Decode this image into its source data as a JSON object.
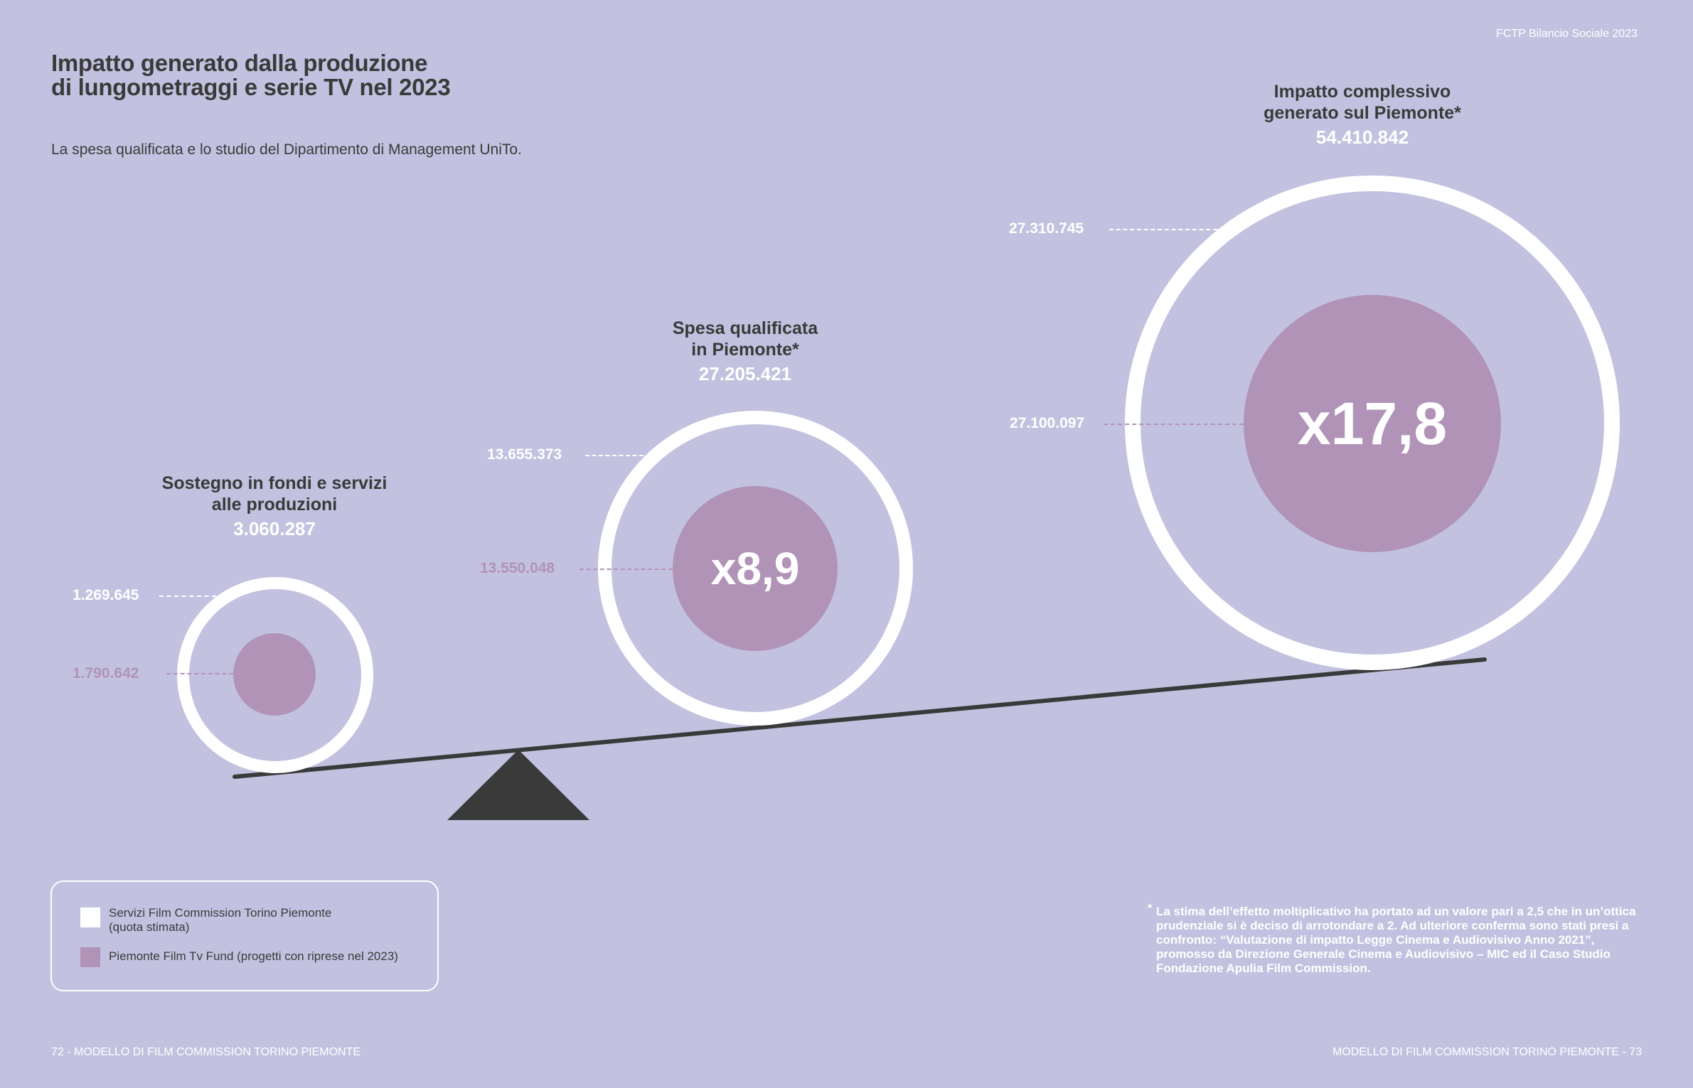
{
  "header": {
    "right": "FCTP Bilancio Sociale 2023"
  },
  "title": {
    "line1": "Impatto generato dalla produzione",
    "line2": "di lungometraggi e serie TV nel 2023"
  },
  "subtitle": "La spesa qualificata e lo studio del Dipartimento di Management UniTo.",
  "groups": [
    {
      "label1": "Sostegno in fondi e servizi",
      "label2": "alle produzioni",
      "total": "3.060.287",
      "services": "1.269.645",
      "fund": "1.790.642",
      "multiplier": ""
    },
    {
      "label1": "Spesa qualificata",
      "label2": "in Piemonte*",
      "total": "27.205.421",
      "services": "13.655.373",
      "fund": "13.550.048",
      "multiplier": "x8,9"
    },
    {
      "label1": "Impatto complessivo",
      "label2": "generato sul Piemonte*",
      "total": "54.410.842",
      "services": "27.310.745",
      "fund": "27.100.097",
      "multiplier": "x17,8"
    }
  ],
  "legend": {
    "services_line1": "Servizi Film Commission Torino Piemonte",
    "services_line2": "(quota stimata)",
    "fund": "Piemonte Film Tv Fund (progetti con riprese nel 2023)"
  },
  "footnote": {
    "marker": "*",
    "text": "La stima dell’effetto moltiplicativo ha portato ad un valore pari a 2,5 che in un’ottica prudenziale si è deciso di arrotondare a 2. Ad ulteriore conferma sono stati presi a confronto: “Valutazione di impatto Legge Cinema e Audiovisivo Anno 2021”, promosso da Direzione Generale Cinema e Audiovisivo – MIC ed il Caso Studio Fondazione Apulia Film Commission."
  },
  "footer": {
    "left": "72 - MODELLO DI FILM COMMISSION TORINO PIEMONTE",
    "right": "MODELLO DI FILM COMMISSION TORINO PIEMONTE - 73"
  },
  "colors": {
    "background": "#c2c2e0",
    "services": "#ffffff",
    "fund": "#b193b8",
    "text": "#3a3a3a"
  }
}
